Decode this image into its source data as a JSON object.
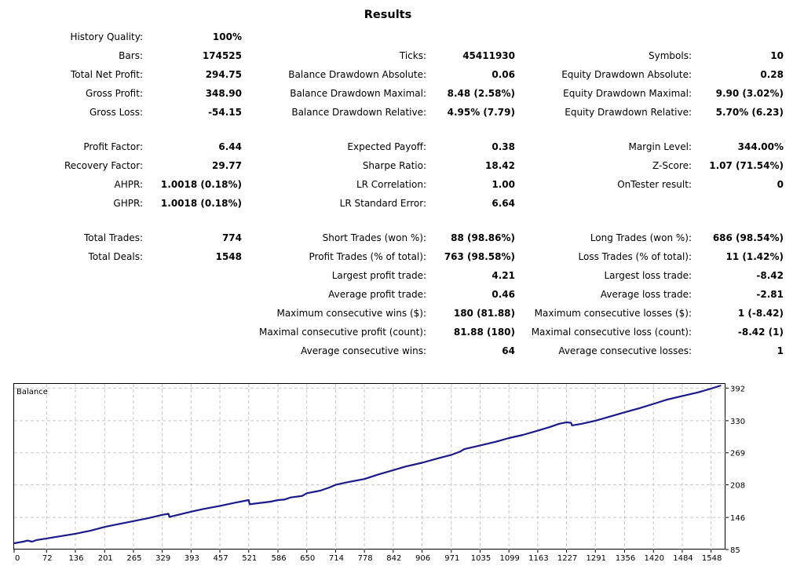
{
  "report": {
    "title": "Results",
    "history_quality": {
      "label": "History Quality:",
      "value": "100%"
    },
    "col1": [
      {
        "label": "Bars:",
        "value": "174525"
      },
      {
        "label": "Total Net Profit:",
        "value": "294.75"
      },
      {
        "label": "Gross Profit:",
        "value": "348.90"
      },
      {
        "label": "Gross Loss:",
        "value": "-54.15"
      },
      null,
      {
        "label": "Profit Factor:",
        "value": "6.44"
      },
      {
        "label": "Recovery Factor:",
        "value": "29.77"
      },
      {
        "label": "AHPR:",
        "value": "1.0018 (0.18%)"
      },
      {
        "label": "GHPR:",
        "value": "1.0018 (0.18%)"
      },
      null,
      {
        "label": "Total Trades:",
        "value": "774"
      },
      {
        "label": "Total Deals:",
        "value": "1548"
      }
    ],
    "col2": [
      {
        "label": "Ticks:",
        "value": "45411930"
      },
      {
        "label": "Balance Drawdown Absolute:",
        "value": "0.06"
      },
      {
        "label": "Balance Drawdown Maximal:",
        "value": "8.48 (2.58%)"
      },
      {
        "label": "Balance Drawdown Relative:",
        "value": "4.95% (7.79)"
      },
      null,
      {
        "label": "Expected Payoff:",
        "value": "0.38"
      },
      {
        "label": "Sharpe Ratio:",
        "value": "18.42"
      },
      {
        "label": "LR Correlation:",
        "value": "1.00"
      },
      {
        "label": "LR Standard Error:",
        "value": "6.64"
      },
      null,
      {
        "label": "Short Trades (won %):",
        "value": "88 (98.86%)"
      },
      {
        "label": "Profit Trades (% of total):",
        "value": "763 (98.58%)"
      },
      {
        "label": "Largest profit trade:",
        "value": "4.21"
      },
      {
        "label": "Average profit trade:",
        "value": "0.46"
      },
      {
        "label": "Maximum consecutive wins ($):",
        "value": "180 (81.88)"
      },
      {
        "label": "Maximal consecutive profit (count):",
        "value": "81.88 (180)"
      },
      {
        "label": "Average consecutive wins:",
        "value": "64"
      }
    ],
    "col3": [
      {
        "label": "Symbols:",
        "value": "10"
      },
      {
        "label": "Equity Drawdown Absolute:",
        "value": "0.28"
      },
      {
        "label": "Equity Drawdown Maximal:",
        "value": "9.90 (3.02%)"
      },
      {
        "label": "Equity Drawdown Relative:",
        "value": "5.70% (6.23)"
      },
      null,
      {
        "label": "Margin Level:",
        "value": "344.00%"
      },
      {
        "label": "Z-Score:",
        "value": "1.07 (71.54%)"
      },
      {
        "label": "OnTester result:",
        "value": "0"
      },
      null,
      null,
      {
        "label": "Long Trades (won %):",
        "value": "686 (98.54%)"
      },
      {
        "label": "Loss Trades (% of total):",
        "value": "11 (1.42%)"
      },
      {
        "label": "Largest loss trade:",
        "value": "-8.42"
      },
      {
        "label": "Average loss trade:",
        "value": "-2.81"
      },
      {
        "label": "Maximum consecutive losses ($):",
        "value": "1 (-8.42)"
      },
      {
        "label": "Maximal consecutive loss (count):",
        "value": "-8.42 (1)"
      },
      {
        "label": "Average consecutive losses:",
        "value": "1"
      }
    ]
  },
  "chart_data": {
    "type": "line",
    "title": "Balance",
    "xlabel": "",
    "ylabel": "",
    "xlim": [
      0,
      1580
    ],
    "ylim": [
      85,
      400
    ],
    "grid": true,
    "x_ticks": [
      "0",
      "72",
      "136",
      "201",
      "265",
      "329",
      "393",
      "457",
      "521",
      "586",
      "650",
      "714",
      "778",
      "842",
      "906",
      "971",
      "1035",
      "1099",
      "1163",
      "1227",
      "1291",
      "1356",
      "1420",
      "1484",
      "1548"
    ],
    "y_ticks": [
      85,
      146,
      208,
      269,
      330,
      392
    ],
    "line_color": "#1a1a8c",
    "series": [
      {
        "x": [
          0,
          20,
          30,
          40,
          50,
          72,
          100,
          136,
          170,
          201,
          230,
          265,
          300,
          329,
          343,
          345,
          355,
          393,
          420,
          457,
          490,
          521,
          523,
          540,
          570,
          586,
          600,
          614,
          640,
          650,
          680,
          700,
          714,
          740,
          778,
          810,
          842,
          870,
          906,
          940,
          971,
          990,
          1000,
          1035,
          1070,
          1099,
          1130,
          1163,
          1190,
          1210,
          1227,
          1237,
          1239,
          1260,
          1291,
          1320,
          1356,
          1390,
          1420,
          1450,
          1484,
          1520,
          1548,
          1570
        ],
        "y": [
          97,
          100,
          102,
          100,
          103,
          106,
          110,
          115,
          121,
          128,
          133,
          139,
          145,
          151,
          153,
          147,
          149,
          157,
          162,
          168,
          174,
          179,
          171,
          173,
          176,
          179,
          180,
          184,
          187,
          192,
          197,
          203,
          208,
          213,
          219,
          228,
          236,
          243,
          250,
          258,
          265,
          271,
          276,
          283,
          290,
          297,
          303,
          311,
          318,
          324,
          327,
          326,
          321,
          324,
          330,
          337,
          346,
          354,
          362,
          370,
          377,
          384,
          391,
          397
        ]
      }
    ]
  }
}
